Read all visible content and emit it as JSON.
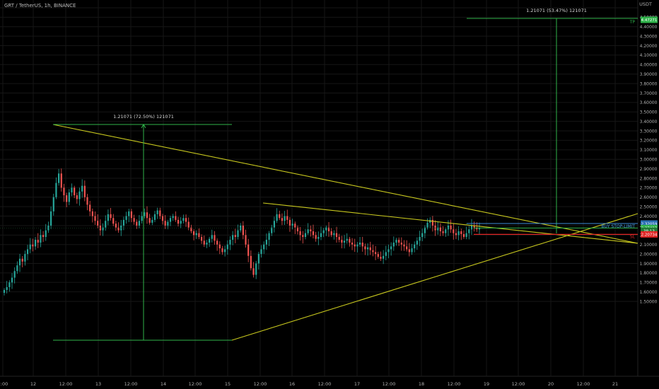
{
  "header": {
    "symbol_title": "GRT / TetherUS, 1h, BINANCE"
  },
  "currency": "USDT",
  "colors": {
    "background": "#000000",
    "candle_up": "#26a69a",
    "candle_down": "#ef5350",
    "trendline": "#c8c81e",
    "measure": "#2fb34a",
    "entry": "#3d8bd9",
    "stop_loss": "#e02424",
    "take_profit": "#2fb34a",
    "axis_text": "#b0b0b0",
    "grid": "#161616"
  },
  "annotations": {
    "measure_1_label": "1.21071 (72.50%) 121071",
    "measure_2_label": "1.21071 (53.47%) 121071",
    "buy_label": "BUY STOP-LIMIT",
    "tp_label": "TP",
    "sl_label": "SL"
  },
  "chart_data": {
    "type": "candlestick",
    "title": "GRT / TetherUS, 1h, BINANCE",
    "ylim": [
      1.5,
      4.6
    ],
    "y_ticks": [
      "4.60000",
      "4.50000",
      "4.40000",
      "4.30000",
      "4.20000",
      "4.10000",
      "4.00000",
      "3.90000",
      "3.80000",
      "3.70000",
      "3.60000",
      "3.50000",
      "3.40000",
      "3.30000",
      "3.20000",
      "3.10000",
      "3.00000",
      "2.90000",
      "2.80000",
      "2.70000",
      "2.60000",
      "2.50000",
      "2.40000",
      "2.30000",
      "2.20000",
      "2.10000",
      "2.00000",
      "1.90000",
      "1.80000",
      "1.70000",
      "1.60000",
      "1.50000"
    ],
    "x_ticks": [
      "2:00",
      "12",
      "12:00",
      "13",
      "12:00",
      "14",
      "12:00",
      "15",
      "12:00",
      "16",
      "12:00",
      "17",
      "12:00",
      "18",
      "12:00",
      "19",
      "12:00",
      "20",
      "12:00",
      "21"
    ],
    "price_tags": [
      {
        "label": "4.47271",
        "value": 4.4727,
        "kind": "tp"
      },
      {
        "label": "2.32201",
        "value": 2.322,
        "kind": "entry"
      },
      {
        "label": "2.32059",
        "value": 2.3206,
        "kind": "entry2"
      },
      {
        "label": "2.27412",
        "value": 2.2741,
        "kind": "last"
      },
      {
        "label": "38:13",
        "value": 2.246,
        "kind": "timer"
      },
      {
        "label": "2.20734",
        "value": 2.2073,
        "kind": "sl"
      }
    ],
    "levels": {
      "take_profit": 4.4727,
      "buy_stop_limit": 2.322,
      "stop_loss": 2.2073,
      "last": 2.2741
    },
    "candles_close": [
      1.62,
      1.65,
      1.7,
      1.75,
      1.82,
      1.88,
      1.95,
      1.92,
      2.0,
      2.05,
      2.1,
      2.08,
      2.15,
      2.12,
      2.2,
      2.18,
      2.25,
      2.3,
      2.45,
      2.6,
      2.75,
      2.85,
      2.7,
      2.62,
      2.55,
      2.65,
      2.7,
      2.62,
      2.58,
      2.66,
      2.72,
      2.6,
      2.52,
      2.45,
      2.4,
      2.35,
      2.3,
      2.25,
      2.28,
      2.35,
      2.42,
      2.38,
      2.32,
      2.28,
      2.25,
      2.3,
      2.36,
      2.4,
      2.45,
      2.38,
      2.34,
      2.3,
      2.35,
      2.4,
      2.44,
      2.38,
      2.33,
      2.36,
      2.42,
      2.46,
      2.4,
      2.35,
      2.3,
      2.34,
      2.38,
      2.4,
      2.36,
      2.32,
      2.35,
      2.38,
      2.34,
      2.28,
      2.24,
      2.2,
      2.22,
      2.18,
      2.14,
      2.1,
      2.12,
      2.16,
      2.2,
      2.14,
      2.1,
      2.06,
      2.02,
      2.05,
      2.1,
      2.15,
      2.2,
      2.18,
      2.25,
      2.3,
      2.2,
      2.1,
      1.98,
      1.85,
      1.78,
      1.9,
      2.0,
      2.05,
      2.1,
      2.15,
      2.22,
      2.28,
      2.35,
      2.42,
      2.38,
      2.35,
      2.4,
      2.36,
      2.3,
      2.32,
      2.28,
      2.24,
      2.2,
      2.18,
      2.22,
      2.26,
      2.24,
      2.2,
      2.16,
      2.18,
      2.22,
      2.25,
      2.28,
      2.24,
      2.2,
      2.22,
      2.18,
      2.15,
      2.12,
      2.14,
      2.16,
      2.12,
      2.1,
      2.08,
      2.1,
      2.12,
      2.08,
      2.05,
      2.07,
      2.04,
      2.02,
      2.0,
      1.97,
      1.95,
      1.98,
      2.02,
      2.05,
      2.08,
      2.12,
      2.15,
      2.12,
      2.1,
      2.08,
      2.05,
      2.02,
      2.06,
      2.1,
      2.14,
      2.18,
      2.22,
      2.28,
      2.33,
      2.36,
      2.3,
      2.25,
      2.28,
      2.24,
      2.22,
      2.26,
      2.3,
      2.26,
      2.22,
      2.2,
      2.24,
      2.21,
      2.18,
      2.22,
      2.26,
      2.3,
      2.28,
      2.26,
      2.27
    ]
  }
}
